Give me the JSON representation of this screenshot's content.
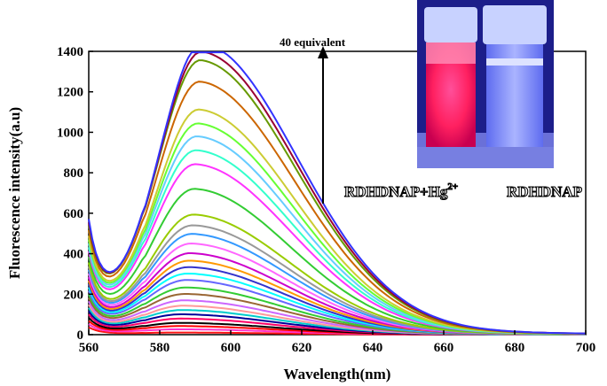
{
  "chart_data": {
    "type": "line",
    "xlabel": "Wavelength(nm)",
    "ylabel": "Fluorescence intensity(a.u)",
    "xlim": [
      560,
      700
    ],
    "ylim": [
      0,
      1400
    ],
    "x_ticks": [
      560,
      580,
      600,
      620,
      640,
      660,
      680,
      700
    ],
    "y_ticks": [
      0,
      200,
      400,
      600,
      800,
      1000,
      1200,
      1400
    ],
    "grid": false,
    "annotation": "40 equivalent",
    "series_peaks": [
      10,
      25,
      40,
      55,
      75,
      95,
      115,
      135,
      160,
      190,
      220,
      255,
      285,
      315,
      345,
      380,
      425,
      470,
      510,
      560,
      680,
      795,
      860,
      925,
      985,
      1050,
      1180,
      1280,
      1320,
      1360
    ],
    "series_colors": [
      "#ff1111",
      "#ff33cc",
      "#ff0000",
      "#000000",
      "#ff0066",
      "#000099",
      "#00cccc",
      "#ff9999",
      "#cc66ff",
      "#996633",
      "#33cc33",
      "#6666ff",
      "#00ffff",
      "#3333cc",
      "#ff9900",
      "#cc00cc",
      "#ff66ff",
      "#3399ff",
      "#999999",
      "#99cc00",
      "#33cc33",
      "#ff33ff",
      "#33ffcc",
      "#66ccff",
      "#66ff33",
      "#cccc33",
      "#cc6600",
      "#669900",
      "#990033",
      "#3333ff"
    ]
  },
  "inset": {
    "label_left": "RDHDNAP+Hg",
    "label_left_sup": "2+",
    "label_right": "RDHDNAP"
  }
}
